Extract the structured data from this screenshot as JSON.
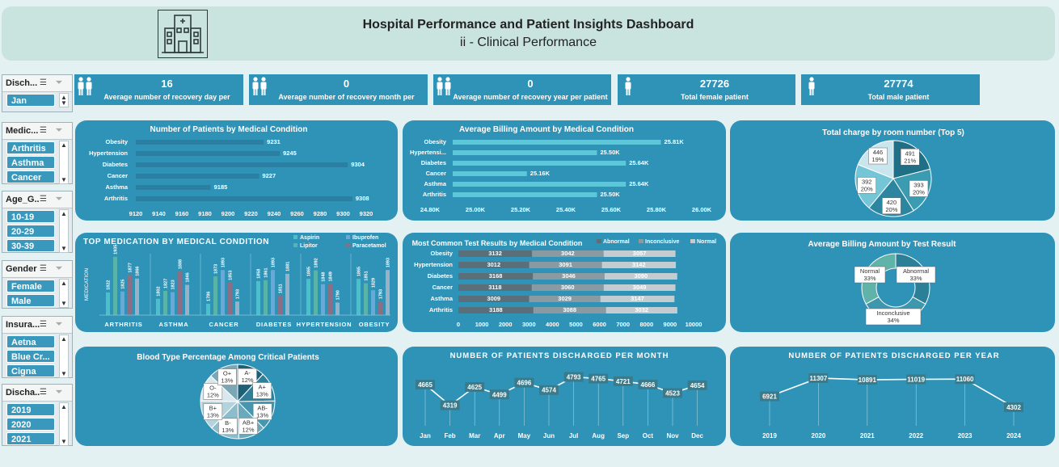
{
  "header": {
    "title": "Hospital Performance and Patient Insights Dashboard",
    "subtitle": "ii - Clinical Performance"
  },
  "slicers": [
    {
      "name": "Disch...",
      "items": [
        "Jan"
      ]
    },
    {
      "name": "Medic...",
      "items": [
        "Arthritis",
        "Asthma",
        "Cancer"
      ]
    },
    {
      "name": "Age_G...",
      "items": [
        "10-19",
        "20-29",
        "30-39"
      ]
    },
    {
      "name": "Gender",
      "items": [
        "Female",
        "Male"
      ]
    },
    {
      "name": "Insura...",
      "items": [
        "Aetna",
        "Blue Cr...",
        "Cigna"
      ]
    },
    {
      "name": "Discha...",
      "items": [
        "2019",
        "2020",
        "2021"
      ]
    }
  ],
  "kpis": [
    {
      "value": "16",
      "label": "Average number of recovery day per",
      "icon": "people-icon"
    },
    {
      "value": "0",
      "label": "Average number of recovery month per",
      "icon": "people-icon"
    },
    {
      "value": "0",
      "label": "Average number of recovery year per patient",
      "icon": "people-icon"
    },
    {
      "value": "27726",
      "label": "Total female patient",
      "icon": "female-icon"
    },
    {
      "value": "27774",
      "label": "Total male patient",
      "icon": "male-icon"
    }
  ],
  "colors": {
    "panel": "#2f93b8",
    "bar_dark": "#2a7fa3",
    "bar_light": "#5bc7d8",
    "header": "#c9e4df"
  },
  "chart_data": [
    {
      "id": "patients_by_condition",
      "type": "bar",
      "orientation": "horizontal",
      "title": "Number of Patients by Medical Condition",
      "categories": [
        "Obesity",
        "Hypertension",
        "Diabetes",
        "Cancer",
        "Asthma",
        "Arthritis"
      ],
      "values": [
        9231,
        9245,
        9304,
        9227,
        9185,
        9308
      ],
      "xlim": [
        9120,
        9320
      ],
      "ticks": [
        "9120",
        "9140",
        "9160",
        "9180",
        "9200",
        "9220",
        "9240",
        "9260",
        "9280",
        "9300",
        "9320"
      ]
    },
    {
      "id": "billing_by_condition",
      "type": "bar",
      "orientation": "horizontal",
      "title": "Average Billing Amount by Medical Condition",
      "categories": [
        "Obesity",
        "Hypertensi...",
        "Diabetes",
        "Cancer",
        "Asthma",
        "Arthritis"
      ],
      "values": [
        25.81,
        25.5,
        25.64,
        25.16,
        25.64,
        25.5
      ],
      "value_labels": [
        "25.81K",
        "25.50K",
        "25.64K",
        "25.16K",
        "25.64K",
        "25.50K"
      ],
      "xlim": [
        24.8,
        26.0
      ],
      "ticks": [
        "24.80K",
        "25.00K",
        "25.20K",
        "25.40K",
        "25.60K",
        "25.80K",
        "26.00K"
      ]
    },
    {
      "id": "room_charge_top5",
      "type": "pie",
      "title": "Total charge by room number (Top 5)",
      "labels": [
        "491",
        "393",
        "420",
        "392",
        "446"
      ],
      "percents": [
        21,
        20,
        20,
        20,
        19
      ],
      "display": [
        "491\n21%",
        "393\n20%",
        "420\n20%",
        "392\n20%",
        "446\n19%"
      ],
      "colors": [
        "#1f6f86",
        "#3a9bb1",
        "#2d86a0",
        "#74c6d6",
        "#c9e6ee"
      ]
    },
    {
      "id": "top_medication",
      "type": "bar",
      "title": "TOP MEDICATION BY MEDICAL CONDITION",
      "ylabel": "MEDICATION",
      "categories": [
        "ARTHRITIS",
        "ASTHMA",
        "CANCER",
        "DIABETES",
        "HYPERTENSION",
        "OBESITY"
      ],
      "series": [
        {
          "name": "Aspirin",
          "values": [
            1822,
            1802,
            1786,
            1858,
            1865,
            1865
          ],
          "color": "#4bc0c8"
        },
        {
          "name": "Lipitor",
          "values": [
            1935,
            1827,
            1873,
            1861,
            1892,
            1851
          ],
          "color": "#58b3a9"
        },
        {
          "name": "Ibuprofen",
          "values": [
            1825,
            1823,
            1893,
            1893,
            1848,
            1829
          ],
          "color": "#6aa8d8"
        },
        {
          "name": "Paracetamol",
          "values": [
            1877,
            1888,
            1853,
            1811,
            1849,
            1793
          ],
          "color": "#8a6f86"
        },
        {
          "name": "",
          "values": [
            1866,
            1846,
            1793,
            1881,
            1790,
            1893
          ],
          "color": "#9ab0c4"
        }
      ],
      "legend": [
        "Aspirin",
        "Lipitor",
        "Ibuprofen",
        "Paracetamol"
      ],
      "ylim": [
        1750,
        1950
      ]
    },
    {
      "id": "test_results",
      "type": "bar",
      "orientation": "horizontal",
      "stacked": true,
      "title": "Most Common Test Results by Medical Condition",
      "categories": [
        "Obesity",
        "Hypertension",
        "Diabetes",
        "Cancer",
        "Asthma",
        "Arthritis"
      ],
      "series": [
        {
          "name": "Abnormal",
          "values": [
            3132,
            3012,
            3168,
            3118,
            3009,
            3188
          ],
          "color": "#5a6f7a"
        },
        {
          "name": "Inconclusive",
          "values": [
            3042,
            3091,
            3046,
            3060,
            3029,
            3088
          ],
          "color": "#8a9aa3"
        },
        {
          "name": "Normal",
          "values": [
            3057,
            3142,
            3090,
            3049,
            3147,
            3032
          ],
          "color": "#c3ccd1"
        }
      ],
      "xlim": [
        0,
        10000
      ],
      "ticks": [
        "0",
        "1000",
        "2000",
        "3000",
        "4000",
        "5000",
        "6000",
        "7000",
        "8000",
        "9000",
        "10000"
      ]
    },
    {
      "id": "billing_by_test",
      "type": "pie",
      "donut": true,
      "title": "Average Billing Amount by Test Result",
      "labels": [
        "Abnormal",
        "Inconclusive",
        "Normal"
      ],
      "percents": [
        33,
        34,
        33
      ],
      "display": [
        "Abnormal\n33%",
        "Inconclusive\n34%",
        "Normal\n33%"
      ],
      "colors": [
        "#2b7f96",
        "#3e97ad",
        "#5fb3a8"
      ]
    },
    {
      "id": "blood_type",
      "type": "pie",
      "title": "Blood Type Percentage Among Critical Patients",
      "labels": [
        "A-",
        "A+",
        "AB-",
        "AB+",
        "B-",
        "B+",
        "O-",
        "O+"
      ],
      "percents": [
        12,
        13,
        13,
        12,
        13,
        13,
        12,
        13
      ],
      "display": [
        "A-\n12%",
        "A+\n13%",
        "AB-\n13%",
        "AB+\n12%",
        "B-\n13%",
        "B+\n13%",
        "O-\n12%",
        "O+\n13%"
      ],
      "colors": [
        "#1d5f78",
        "#2f7f99",
        "#4796ae",
        "#6aa8bc",
        "#8cbdcd",
        "#b3d3dd",
        "#d8e8ee",
        "#7aa6b5"
      ]
    },
    {
      "id": "discharged_per_month",
      "type": "line",
      "title": "NUMBER OF PATIENTS DISCHARGED PER MONTH",
      "categories": [
        "Jan",
        "Feb",
        "Mar",
        "Apr",
        "May",
        "Jun",
        "Jul",
        "Aug",
        "Sep",
        "Oct",
        "Nov",
        "Dec"
      ],
      "values": [
        4665,
        4319,
        4625,
        4499,
        4696,
        4574,
        4793,
        4765,
        4721,
        4666,
        4523,
        4654
      ]
    },
    {
      "id": "discharged_per_year",
      "type": "line",
      "title": "NUMBER OF PATIENTS DISCHARGED PER YEAR",
      "categories": [
        "2019",
        "2020",
        "2021",
        "2022",
        "2023",
        "2024"
      ],
      "values": [
        6921,
        11307,
        10891,
        11019,
        11060,
        4302
      ]
    }
  ]
}
